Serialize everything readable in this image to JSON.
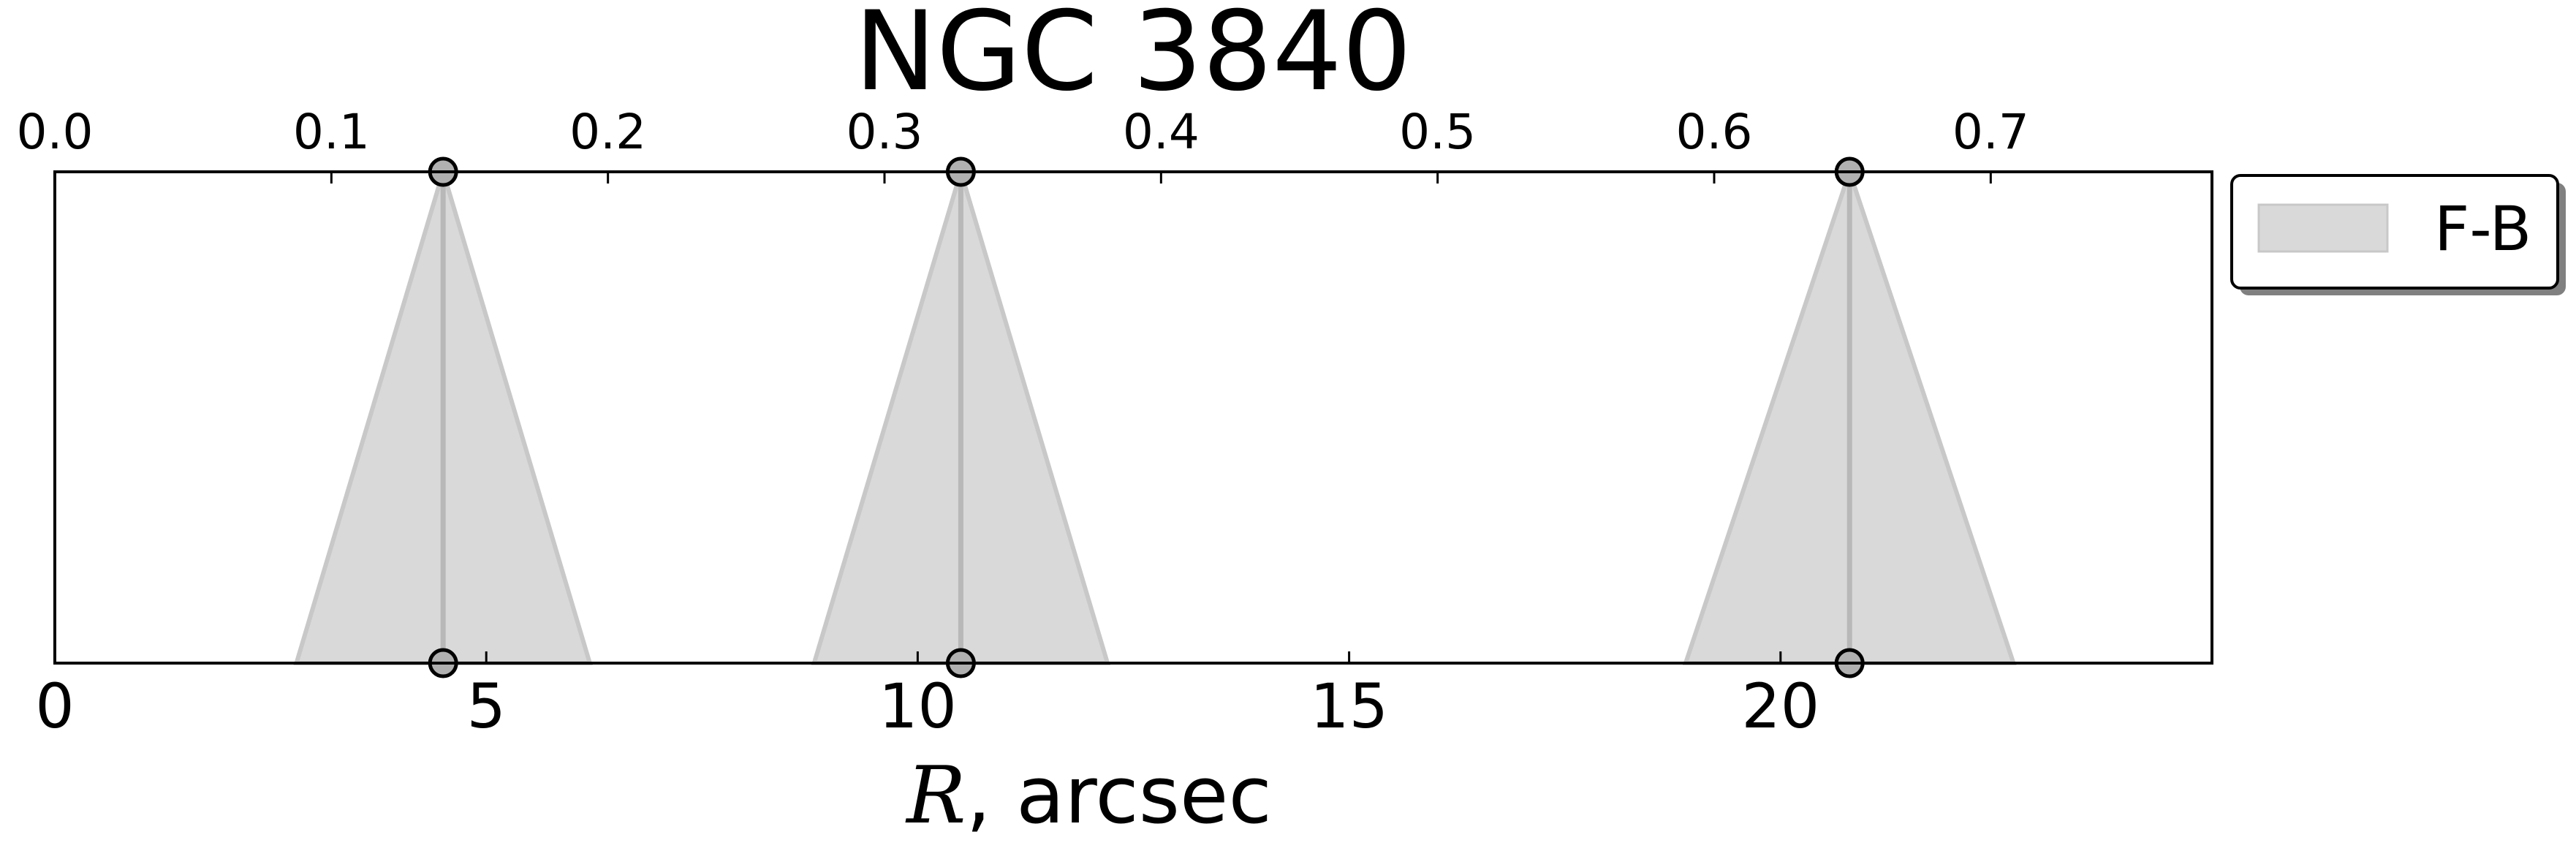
{
  "chart_data": {
    "type": "area",
    "title": "NGC 3840",
    "xlabel": {
      "var": "R",
      "rest": ", arcsec"
    },
    "xlim": [
      0,
      25
    ],
    "xticks": [
      0,
      5,
      10,
      15,
      20
    ],
    "x_top_lim": [
      0,
      0.78
    ],
    "x_top_ticks": [
      "0.0",
      "0.1",
      "0.2",
      "0.3",
      "0.4",
      "0.5",
      "0.6",
      "0.7"
    ],
    "grid": false,
    "legend": {
      "placement": "outside-top-right",
      "entries": [
        "F-B"
      ]
    },
    "series": [
      {
        "name": "F-B",
        "color": "#d9d9d9",
        "edge_color": "#c8c8c8",
        "slits": [
          {
            "center": 4.5,
            "half_width": 1.7
          },
          {
            "center": 10.5,
            "half_width": 1.7
          },
          {
            "center": 20.8,
            "half_width": 1.9
          }
        ]
      }
    ]
  }
}
